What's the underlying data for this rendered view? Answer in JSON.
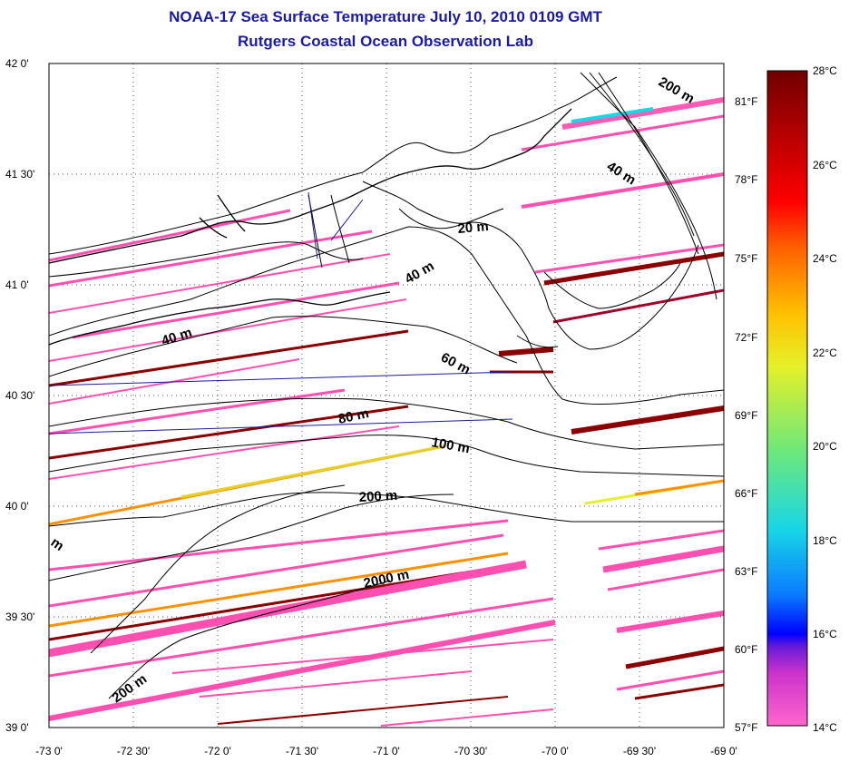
{
  "title": "NOAA-17 Sea Surface Temperature July 10, 2010 0109 GMT",
  "subtitle": "Rutgers Coastal Ocean Observation Lab",
  "lat_labels": [
    "42 0'",
    "41 30'",
    "41 0'",
    "40 30'",
    "40 0'",
    "39 30'",
    "39 0'"
  ],
  "lon_labels": [
    "-73 0'",
    "-72 30'",
    "-72 0'",
    "-71 30'",
    "-71 0'",
    "-70 30'",
    "-70 0'",
    "-69 30'",
    "-69 0'"
  ],
  "lat_range": [
    39.0,
    42.0
  ],
  "lon_range": [
    -73.0,
    -69.0
  ],
  "colorbar": {
    "range_c": [
      14,
      28
    ],
    "celsius_labels": [
      "28°C",
      "26°C",
      "24°C",
      "22°C",
      "20°C",
      "18°C",
      "16°C",
      "14°C"
    ],
    "fahrenheit_labels": [
      "81°F",
      "78°F",
      "75°F",
      "72°F",
      "69°F",
      "66°F",
      "63°F",
      "60°F",
      "57°F"
    ],
    "colors": [
      "#ff66cc",
      "#cc33cc",
      "#6a1bd6",
      "#0000ff",
      "#0a7bff",
      "#18d6e6",
      "#6ee87a",
      "#e6f028",
      "#ffc000",
      "#ff6000",
      "#ff0000",
      "#b80000",
      "#700000"
    ]
  },
  "contour_labels": [
    "200 m",
    "40 m",
    "20 m",
    "40 m",
    "40 m",
    "60 m",
    "80 m",
    "100 m",
    "200 m",
    "2000 m",
    "200 m",
    "m"
  ]
}
